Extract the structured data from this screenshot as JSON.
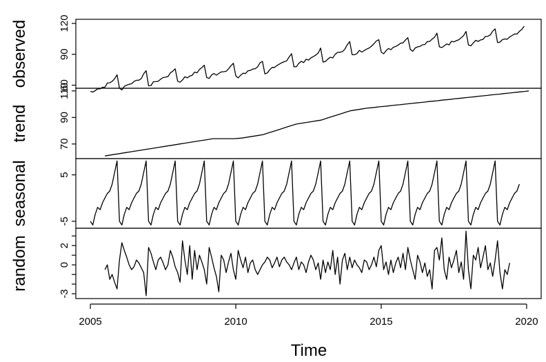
{
  "chart_data": {
    "type": "line",
    "title": "",
    "xlabel": "Time",
    "x_range": [
      2005.0,
      2019.92
    ],
    "xlim": [
      2004.5,
      2020.5
    ],
    "x_ticks": [
      2005,
      2010,
      2015,
      2020
    ],
    "panels": [
      {
        "name": "observed",
        "ylabel": "observed",
        "ylim": [
          57,
          124
        ],
        "y_ticks": [
          60,
          90,
          120
        ],
        "y_tick_labels": [
          "60",
          "90",
          "120"
        ],
        "x_start": 2005.0,
        "gen": {
          "kind": "observed",
          "n": 180,
          "seasonal_amp": 1.0
        }
      },
      {
        "name": "trend",
        "ylabel": "trend",
        "ylim": [
          59,
          112
        ],
        "y_ticks": [
          70,
          90,
          110
        ],
        "y_tick_labels": [
          "70",
          "90",
          "110"
        ],
        "x_start": 2005.5,
        "values": [
          61,
          61.5,
          62,
          62.5,
          63,
          63.5,
          64,
          64.5,
          65,
          65.5,
          66,
          66.5,
          67,
          67.5,
          68,
          68.5,
          69,
          69.5,
          70,
          70.5,
          71,
          71.5,
          72,
          72.5,
          73,
          73.5,
          74,
          74,
          74,
          74,
          74,
          74,
          74.2,
          74.5,
          75,
          75.5,
          76,
          76.5,
          77,
          78,
          79,
          80,
          81,
          82,
          83,
          84,
          85,
          85.5,
          86,
          86.5,
          87,
          87.5,
          88,
          89,
          90,
          91,
          92,
          93,
          94,
          95,
          95.5,
          96,
          96.5,
          97,
          97.3,
          97.6,
          98,
          98.3,
          98.6,
          99,
          99.3,
          99.6,
          100,
          100.3,
          100.6,
          101,
          101.3,
          101.6,
          102,
          102.3,
          102.6,
          103,
          103.3,
          103.6,
          104,
          104.3,
          104.6,
          105,
          105.3,
          105.6,
          106,
          106.3,
          106.6,
          107,
          107.3,
          107.6,
          108,
          108.3,
          108.6,
          109,
          109.3,
          109.6,
          110
        ],
        "values_step": 0.1429
      },
      {
        "name": "seasonal",
        "ylabel": "seasonal",
        "ylim": [
          -6.5,
          8.5
        ],
        "y_ticks": [
          -5,
          5
        ],
        "y_tick_labels": [
          "-5",
          "5"
        ],
        "x_start": 2005.0,
        "seasonal_cycle": [
          -5.0,
          -5.8,
          -3.5,
          -2.0,
          -2.5,
          -1.0,
          0.0,
          1.0,
          1.5,
          3.0,
          5.5,
          8.0
        ],
        "n": 178
      },
      {
        "name": "random",
        "ylabel": "random",
        "ylim": [
          -3.5,
          3.8
        ],
        "y_ticks": [
          -3,
          0,
          2
        ],
        "y_tick_labels": [
          "-3",
          "0",
          "2"
        ],
        "extra_ticks": [
          -3,
          -2,
          -1,
          0,
          1,
          2,
          3
        ],
        "x_start": 2005.5,
        "values": [
          -0.5,
          0.0,
          -1.5,
          -1.0,
          -1.8,
          -2.5,
          0.5,
          2.3,
          1.5,
          0.8,
          0.0,
          -0.5,
          -0.2,
          0.5,
          0.2,
          -0.3,
          -0.8,
          -3.2,
          1.8,
          1.2,
          0.3,
          -0.5,
          0.5,
          0.8,
          0.2,
          -0.5,
          0.0,
          1.5,
          0.8,
          -0.2,
          -0.8,
          -1.8,
          2.5,
          0.5,
          -1.0,
          2.0,
          -1.5,
          1.5,
          -0.5,
          1.0,
          0.3,
          -0.5,
          -2.0,
          1.8,
          0.8,
          -0.3,
          -1.2,
          -2.8,
          1.0,
          0.5,
          -0.8,
          0.3,
          1.2,
          -0.5,
          -1.5,
          1.5,
          0.5,
          -0.3,
          0.8,
          -0.8,
          0.2,
          0.5,
          -0.5,
          -1.0,
          -0.5,
          0.0,
          0.3,
          0.8,
          0.5,
          -0.3,
          0.2,
          0.8,
          -0.2,
          0.5,
          0.8,
          0.3,
          0.0,
          -0.5,
          0.2,
          0.8,
          -0.5,
          0.3,
          0.0,
          -0.8,
          0.3,
          1.0,
          0.5,
          -0.5,
          0.2,
          -1.5,
          0.5,
          -0.8,
          0.3,
          -0.5,
          1.5,
          -1.0,
          0.8,
          -2.0,
          0.5,
          1.2,
          -0.5,
          0.8,
          -0.3,
          0.5,
          0.0,
          -0.3,
          -0.8,
          0.5,
          0.3,
          -0.5,
          0.0,
          0.8,
          -0.2,
          1.5,
          2.0,
          -0.5,
          0.3,
          -1.0,
          0.5,
          -0.8,
          0.2,
          0.8,
          -0.3,
          1.2,
          -0.5,
          1.8,
          0.5,
          -0.5,
          -1.5,
          1.0,
          0.3,
          -0.8,
          0.2,
          -1.2,
          -0.5,
          -2.5,
          1.5,
          1.8,
          0.5,
          2.8,
          -0.5,
          -1.5,
          0.8,
          -0.3,
          0.5,
          1.5,
          -0.8,
          0.3,
          -1.5,
          3.5,
          -0.5,
          -2.5,
          1.0,
          0.5,
          1.8,
          -0.3,
          0.8,
          2.0,
          -0.5,
          0.2,
          -1.2,
          0.5,
          2.5,
          -0.8,
          -2.5,
          -0.5,
          -1.0,
          0.2
        ]
      }
    ]
  }
}
